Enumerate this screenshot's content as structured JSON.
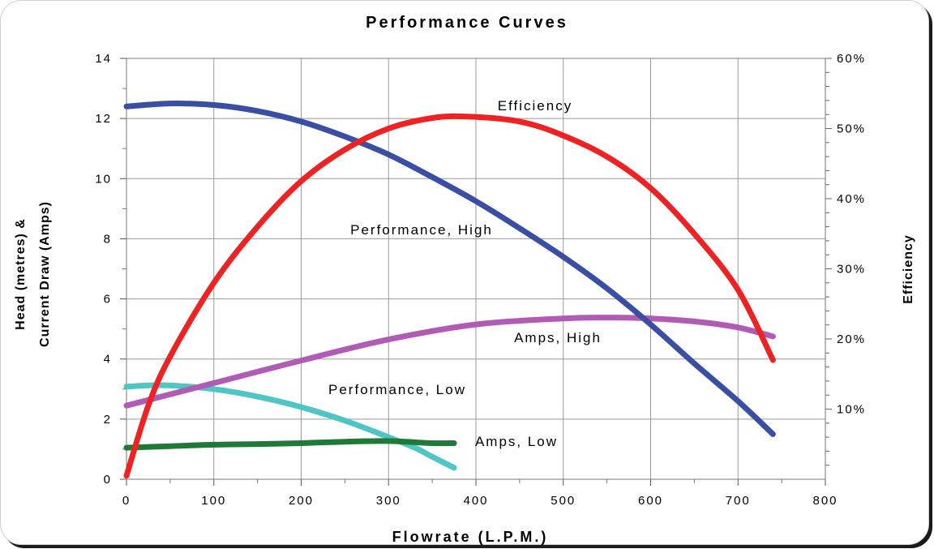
{
  "chart_data": {
    "type": "line",
    "title": "Performance Curves",
    "xlabel": "Flowrate (L.P.M.)",
    "ylabel_lines": [
      "Head (metres) &",
      "Current Draw (Amps)"
    ],
    "y2label": "Efficiency",
    "xlim": [
      0,
      800
    ],
    "ylim": [
      0,
      14
    ],
    "y2lim": [
      0,
      60
    ],
    "x_ticks": [
      "0",
      "100",
      "200",
      "300",
      "400",
      "500",
      "600",
      "700",
      "800"
    ],
    "y_ticks": [
      "0",
      "2",
      "4",
      "6",
      "8",
      "10",
      "12",
      "14"
    ],
    "y2_ticks": [
      "10%",
      "20%",
      "30%",
      "40%",
      "50%",
      "60%"
    ],
    "grid": true,
    "series": [
      {
        "name": "Performance, High",
        "color": "#3a4fa3",
        "axis": "left",
        "x": [
          0,
          50,
          100,
          150,
          200,
          250,
          300,
          350,
          400,
          450,
          500,
          550,
          600,
          650,
          700,
          740
        ],
        "y": [
          12.4,
          12.5,
          12.45,
          12.25,
          11.9,
          11.4,
          10.8,
          10.05,
          9.25,
          8.35,
          7.4,
          6.35,
          5.15,
          3.85,
          2.6,
          1.5
        ]
      },
      {
        "name": "Efficiency",
        "color": "#ee2222",
        "axis": "right",
        "x": [
          0,
          25,
          50,
          100,
          150,
          200,
          250,
          300,
          350,
          390,
          450,
          500,
          550,
          600,
          650,
          700,
          740
        ],
        "y": [
          0.5,
          10.5,
          17.5,
          28,
          36,
          42.5,
          47,
          50,
          51.5,
          51.7,
          51,
          49,
          46,
          41.5,
          35,
          27,
          17
        ]
      },
      {
        "name": "Amps, High",
        "color": "#b15bb6",
        "axis": "left",
        "x": [
          0,
          100,
          200,
          300,
          400,
          500,
          550,
          600,
          650,
          700,
          740
        ],
        "y": [
          2.45,
          3.2,
          3.95,
          4.65,
          5.15,
          5.35,
          5.38,
          5.35,
          5.25,
          5.05,
          4.75
        ]
      },
      {
        "name": "Performance, Low",
        "color": "#4fc6c6",
        "axis": "left",
        "x": [
          0,
          25,
          50,
          100,
          150,
          200,
          250,
          300,
          330,
          350,
          375
        ],
        "y": [
          3.08,
          3.12,
          3.12,
          3.0,
          2.75,
          2.4,
          1.95,
          1.4,
          1.05,
          0.75,
          0.38
        ]
      },
      {
        "name": "Amps, Low",
        "color": "#1f7a37",
        "axis": "left",
        "x": [
          0,
          50,
          100,
          150,
          200,
          250,
          300,
          350,
          375
        ],
        "y": [
          1.05,
          1.1,
          1.15,
          1.17,
          1.2,
          1.25,
          1.27,
          1.2,
          1.2
        ]
      }
    ],
    "annotations": [
      {
        "text": "Efficiency",
        "series": "Efficiency"
      },
      {
        "text": "Performance, High",
        "series": "Performance, High"
      },
      {
        "text": "Amps, High",
        "series": "Amps, High"
      },
      {
        "text": "Performance, Low",
        "series": "Performance, Low"
      },
      {
        "text": "Amps, Low",
        "series": "Amps, Low"
      }
    ]
  }
}
